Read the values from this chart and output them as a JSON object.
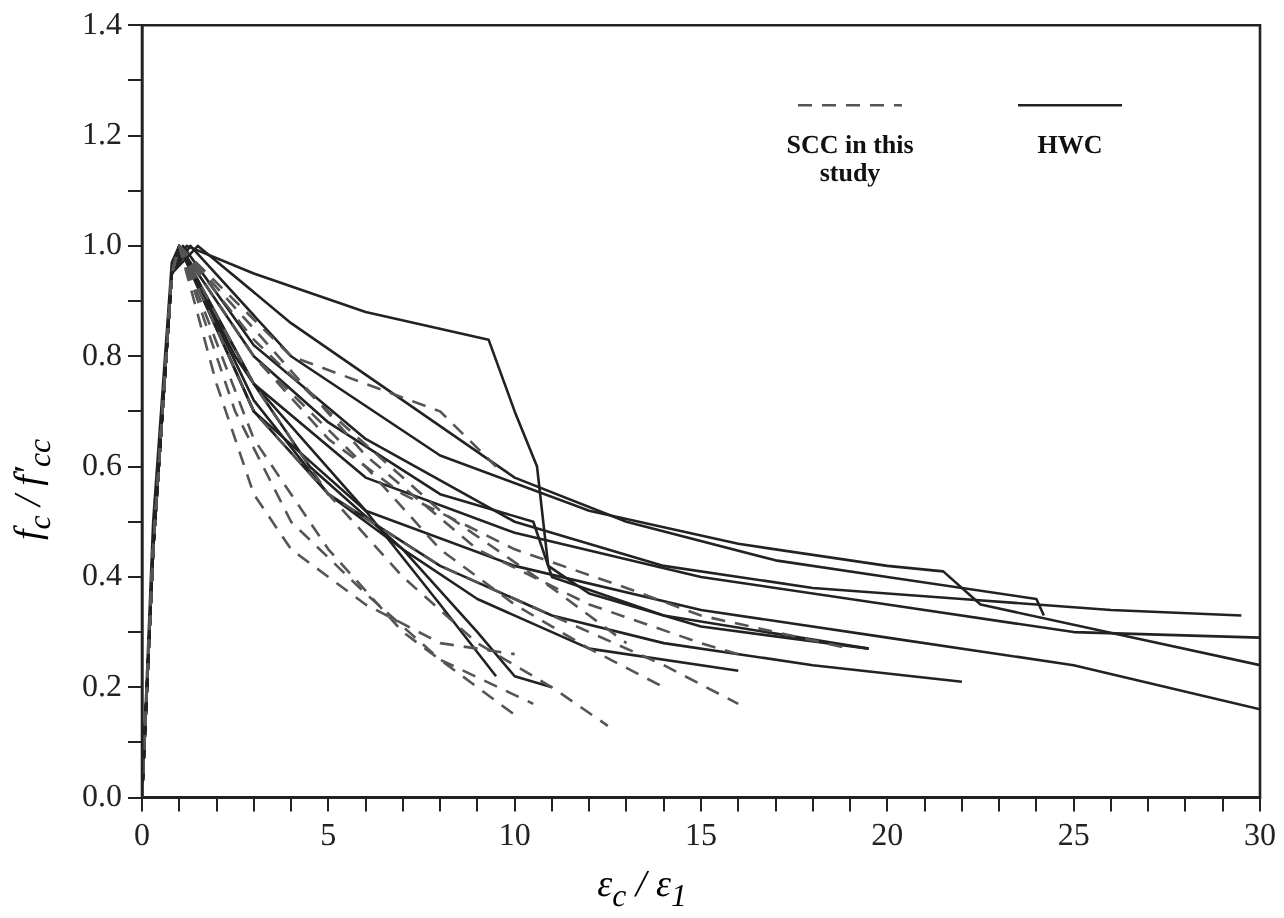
{
  "chart_data": {
    "type": "line",
    "xlabel": "ε$_{c}$ / ε$_{1}$",
    "ylabel": "f$_{c}$ / f′$_{cc}$",
    "marker": "none",
    "legend": "top right",
    "grid": false,
    "xlim": [
      0,
      30
    ],
    "ylim": [
      0,
      1.4
    ],
    "xticks": [
      0,
      {
        "value": 1,
        "label": null
      },
      {
        "value": 2,
        "label": null
      },
      {
        "value": 3,
        "label": null
      },
      {
        "value": 4,
        "label": null
      },
      5,
      {
        "value": 6,
        "label": null
      },
      {
        "value": 7,
        "label": null
      },
      {
        "value": 8,
        "label": null
      },
      {
        "value": 9,
        "label": null
      },
      10,
      {
        "value": 11,
        "label": null
      },
      {
        "value": 12,
        "label": null
      },
      {
        "value": 13,
        "label": null
      },
      {
        "value": 14,
        "label": null
      },
      15,
      {
        "value": 16,
        "label": null
      },
      {
        "value": 17,
        "label": null
      },
      {
        "value": 18,
        "label": null
      },
      {
        "value": 19,
        "label": null
      },
      20,
      {
        "value": 21,
        "label": null
      },
      {
        "value": 22,
        "label": null
      },
      {
        "value": 23,
        "label": null
      },
      {
        "value": 24,
        "label": null
      },
      25,
      {
        "value": 26,
        "label": null
      },
      {
        "value": 27,
        "label": null
      },
      {
        "value": 28,
        "label": null
      },
      {
        "value": 29,
        "label": null
      },
      30
    ],
    "yticks": [
      {
        "value": 0,
        "label": "0.0"
      },
      {
        "value": 0.1,
        "label": null
      },
      {
        "value": 0.2,
        "label": "0.2"
      },
      {
        "value": 0.3,
        "label": null
      },
      {
        "value": 0.4,
        "label": "0.4"
      },
      {
        "value": 0.5,
        "label": null
      },
      {
        "value": 0.6,
        "label": "0.6"
      },
      {
        "value": 0.7,
        "label": null
      },
      {
        "value": 0.8,
        "label": "0.8"
      },
      {
        "value": 0.9,
        "label": null
      },
      {
        "value": 1,
        "label": "1.0"
      },
      {
        "value": 1.1,
        "label": null
      },
      {
        "value": 1.2,
        "label": "1.2"
      },
      {
        "value": 1.3,
        "label": null
      },
      {
        "value": 1.4,
        "label": "1.4"
      }
    ],
    "series": [
      {
        "name": "SCC in this study",
        "color": "#555555",
        "line_style": "dashed",
        "x": [
          0,
          0.3,
          0.8,
          1,
          2,
          3,
          4,
          6,
          8,
          10
        ],
        "values": [
          0,
          0.45,
          0.95,
          1,
          0.75,
          0.55,
          0.45,
          0.35,
          0.28,
          0.26
        ]
      },
      {
        "color": "#555555",
        "line_style": "dashed",
        "x": [
          0,
          0.3,
          0.8,
          1,
          3,
          5,
          7,
          9,
          10
        ],
        "values": [
          0,
          0.45,
          0.95,
          1,
          0.65,
          0.45,
          0.3,
          0.2,
          0.15
        ]
      },
      {
        "color": "#555555",
        "line_style": "dashed",
        "x": [
          0,
          0.3,
          0.8,
          1,
          3,
          5,
          7,
          9,
          11,
          12.5
        ],
        "values": [
          0,
          0.45,
          0.95,
          1,
          0.75,
          0.55,
          0.4,
          0.28,
          0.2,
          0.13
        ]
      },
      {
        "color": "#555555",
        "line_style": "dashed",
        "x": [
          0,
          0.3,
          0.8,
          1,
          3,
          6,
          8,
          10,
          12,
          14
        ],
        "values": [
          0,
          0.45,
          0.95,
          1,
          0.8,
          0.6,
          0.45,
          0.35,
          0.27,
          0.2
        ]
      },
      {
        "color": "#555555",
        "line_style": "dashed",
        "x": [
          0,
          0.3,
          0.8,
          1,
          3,
          6,
          9,
          12,
          15,
          16
        ],
        "values": [
          0,
          0.45,
          0.95,
          1,
          0.85,
          0.62,
          0.45,
          0.35,
          0.28,
          0.26
        ]
      },
      {
        "color": "#555555",
        "line_style": "dashed",
        "x": [
          0,
          0.3,
          0.8,
          1,
          3,
          5,
          8,
          11,
          13
        ],
        "values": [
          0,
          0.45,
          0.95,
          1,
          0.83,
          0.7,
          0.52,
          0.38,
          0.28
        ]
      },
      {
        "color": "#555555",
        "line_style": "dashed",
        "x": [
          0,
          0.3,
          0.8,
          1,
          4,
          6,
          8,
          9.5
        ],
        "values": [
          0,
          0.45,
          0.95,
          1,
          0.8,
          0.75,
          0.7,
          0.6
        ]
      },
      {
        "color": "#555555",
        "line_style": "dashed",
        "x": [
          0,
          0.3,
          0.8,
          1,
          3,
          5,
          8,
          11,
          14,
          16
        ],
        "values": [
          0,
          0.45,
          0.95,
          1,
          0.7,
          0.55,
          0.42,
          0.33,
          0.24,
          0.17
        ]
      },
      {
        "color": "#555555",
        "line_style": "dashed",
        "x": [
          0,
          0.3,
          0.8,
          1,
          2.5,
          4,
          6,
          8,
          10.5
        ],
        "values": [
          0,
          0.45,
          0.95,
          1,
          0.7,
          0.5,
          0.37,
          0.25,
          0.17
        ]
      },
      {
        "color": "#555555",
        "line_style": "dashed",
        "x": [
          0,
          0.3,
          0.8,
          1,
          3,
          5,
          7,
          10,
          13,
          15,
          19
        ],
        "values": [
          0,
          0.45,
          0.95,
          1,
          0.8,
          0.65,
          0.55,
          0.45,
          0.38,
          0.33,
          0.27
        ]
      },
      {
        "name": "HWC",
        "color": "#222222",
        "line_style": "solid",
        "x": [
          0,
          0.3,
          0.8,
          1.2,
          3,
          6,
          9.3,
          10,
          10.6,
          10.9,
          12,
          15,
          19.5
        ],
        "values": [
          0,
          0.45,
          0.95,
          1,
          0.95,
          0.88,
          0.83,
          0.7,
          0.6,
          0.42,
          0.37,
          0.31,
          0.27
        ]
      },
      {
        "color": "#222222",
        "line_style": "solid",
        "x": [
          0,
          0.3,
          0.8,
          1.3,
          4,
          8,
          12,
          16,
          20,
          21.5,
          22.5,
          30
        ],
        "values": [
          0,
          0.45,
          0.95,
          1,
          0.8,
          0.62,
          0.52,
          0.46,
          0.42,
          0.41,
          0.35,
          0.24
        ]
      },
      {
        "color": "#222222",
        "line_style": "solid",
        "x": [
          0,
          0.3,
          0.8,
          1.1,
          3,
          6,
          10,
          14,
          18,
          22,
          26,
          29.5
        ],
        "values": [
          0,
          0.45,
          0.95,
          1,
          0.82,
          0.65,
          0.5,
          0.42,
          0.38,
          0.36,
          0.34,
          0.33
        ]
      },
      {
        "color": "#222222",
        "line_style": "solid",
        "x": [
          0,
          0.3,
          0.8,
          1,
          3,
          6,
          10,
          15,
          20,
          25,
          30
        ],
        "values": [
          0,
          0.45,
          0.95,
          1,
          0.75,
          0.58,
          0.48,
          0.4,
          0.35,
          0.3,
          0.29
        ]
      },
      {
        "color": "#222222",
        "line_style": "solid",
        "x": [
          0,
          0.3,
          0.8,
          1,
          3,
          6,
          10,
          15,
          20,
          25,
          30
        ],
        "values": [
          0,
          0.5,
          0.97,
          1,
          0.7,
          0.52,
          0.42,
          0.34,
          0.29,
          0.24,
          0.16
        ]
      },
      {
        "color": "#222222",
        "line_style": "solid",
        "x": [
          0,
          0.3,
          0.8,
          1,
          3,
          5,
          8,
          11,
          14,
          18,
          22
        ],
        "values": [
          0,
          0.45,
          0.95,
          1,
          0.72,
          0.55,
          0.42,
          0.33,
          0.28,
          0.24,
          0.21
        ]
      },
      {
        "color": "#222222",
        "line_style": "solid",
        "x": [
          0,
          0.3,
          0.8,
          1,
          3,
          5,
          8,
          10.5,
          11,
          14,
          19.5
        ],
        "values": [
          0,
          0.45,
          0.95,
          1,
          0.8,
          0.68,
          0.55,
          0.5,
          0.4,
          0.33,
          0.27
        ]
      },
      {
        "color": "#222222",
        "line_style": "solid",
        "x": [
          0,
          0.3,
          0.8,
          1,
          2.5,
          4.5,
          7,
          9,
          10,
          11
        ],
        "values": [
          0,
          0.45,
          0.95,
          1,
          0.8,
          0.6,
          0.45,
          0.3,
          0.22,
          0.2
        ]
      },
      {
        "color": "#222222",
        "line_style": "solid",
        "x": [
          0,
          0.3,
          0.8,
          1,
          3,
          5,
          7,
          9,
          12,
          16
        ],
        "values": [
          0,
          0.45,
          0.95,
          1,
          0.7,
          0.55,
          0.45,
          0.36,
          0.27,
          0.23
        ]
      },
      {
        "color": "#222222",
        "line_style": "solid",
        "x": [
          0,
          0.3,
          0.8,
          1.5,
          4,
          7,
          10,
          13,
          17,
          20,
          24,
          24.2
        ],
        "values": [
          0,
          0.45,
          0.95,
          1,
          0.86,
          0.72,
          0.58,
          0.5,
          0.43,
          0.4,
          0.36,
          0.33
        ]
      },
      {
        "color": "#222222",
        "line_style": "solid",
        "x": [
          0,
          0.3,
          0.8,
          1,
          3,
          6,
          8,
          9.5
        ],
        "values": [
          0,
          0.45,
          0.95,
          1,
          0.75,
          0.52,
          0.35,
          0.22
        ]
      }
    ]
  }
}
